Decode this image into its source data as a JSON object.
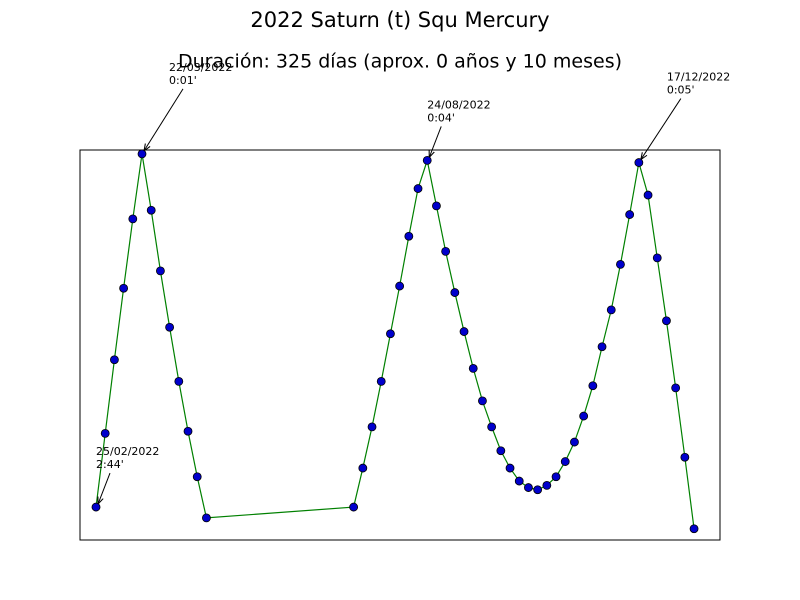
{
  "chart_data": {
    "type": "line",
    "title": "2022 Saturn (t) Squ Mercury",
    "subtitle": "Duración: 325 días (aprox. 0 años y 10 meses)",
    "x": [
      0,
      5,
      10,
      15,
      20,
      25,
      30,
      35,
      40,
      45,
      50,
      55,
      60,
      140,
      145,
      150,
      155,
      160,
      165,
      170,
      175,
      180,
      185,
      190,
      195,
      200,
      205,
      210,
      215,
      220,
      225,
      230,
      235,
      240,
      245,
      250,
      255,
      260,
      265,
      270,
      275,
      280,
      285,
      290,
      295,
      300,
      305,
      310,
      315,
      320,
      325
    ],
    "series": [
      {
        "color": "green",
        "marker_color": "#0000cc",
        "values": [
          164,
          130,
          96,
          63,
          31,
          1,
          27,
          55,
          81,
          106,
          129,
          150,
          169,
          164,
          146,
          127,
          106,
          84,
          62,
          39,
          17,
          4,
          25,
          46,
          65,
          83,
          100,
          115,
          127,
          138,
          146,
          152,
          155,
          156,
          154,
          150,
          143,
          134,
          122,
          108,
          90,
          73,
          52,
          29,
          5,
          20,
          49,
          78,
          109,
          141,
          174
        ]
      }
    ],
    "xlim": [
      -8.7,
      339.1
    ],
    "ylim": [
      179.2,
      -0.8
    ],
    "annotations": [
      {
        "x": 0,
        "y": 164,
        "date": "25/02/2022",
        "orb": "2:44'"
      },
      {
        "x": 25,
        "y": 1,
        "date": "22/03/2022",
        "orb": "0:01'"
      },
      {
        "x": 180,
        "y": 4,
        "date": "24/08/2022",
        "orb": "0:04'"
      },
      {
        "x": 295,
        "y": 5,
        "date": "17/12/2022",
        "orb": "0:05'"
      }
    ]
  }
}
